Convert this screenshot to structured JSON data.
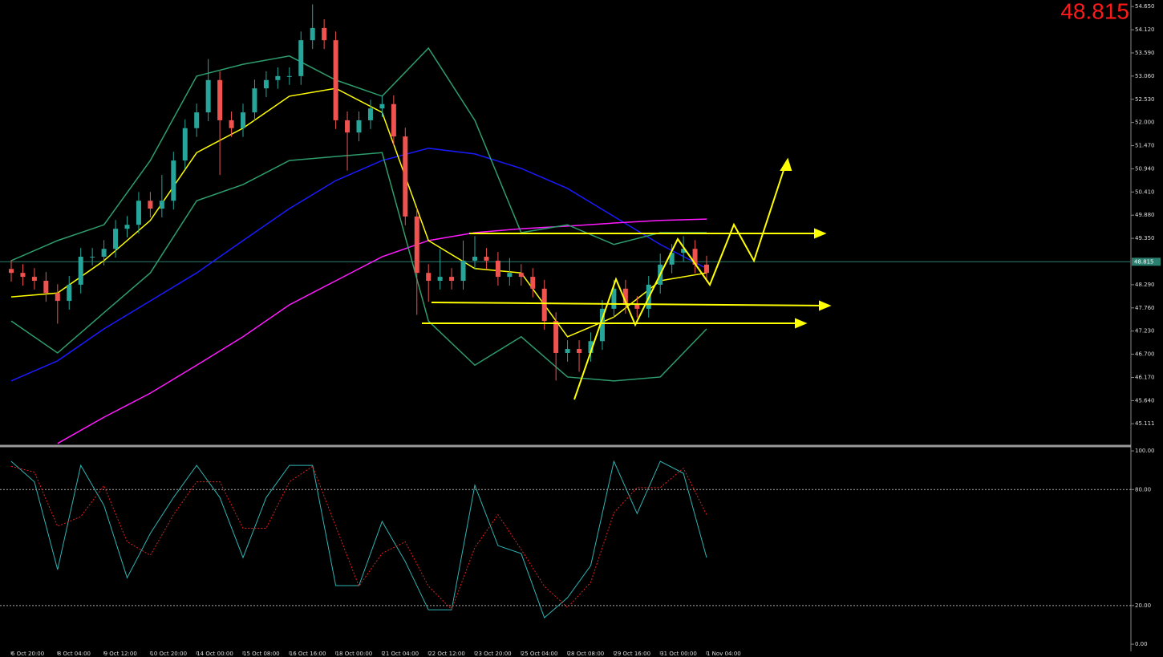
{
  "chart_data": [
    {
      "type": "candlestick",
      "current_price": 48.815,
      "up_color": "#26a69a",
      "down_color": "#ef5350",
      "categories": [
        "6 Oct 20:00",
        null,
        null,
        null,
        "8 Oct 04:00",
        null,
        null,
        null,
        "9 Oct 12:00",
        null,
        null,
        null,
        "10 Oct 20:00",
        null,
        null,
        null,
        "14 Oct 00:00",
        null,
        null,
        null,
        "15 Oct 08:00",
        null,
        null,
        null,
        "16 Oct 16:00",
        null,
        null,
        null,
        "18 Oct 00:00",
        null,
        null,
        null,
        "21 Oct 04:00",
        null,
        null,
        null,
        "22 Oct 12:00",
        null,
        null,
        null,
        "23 Oct 20:00",
        null,
        null,
        null,
        "25 Oct 04:00",
        null,
        null,
        null,
        "28 Oct 08:00",
        null,
        null,
        null,
        "29 Oct 16:00",
        null,
        null,
        null,
        "31 Oct 00:00",
        null,
        null,
        null,
        "1 Nov 04:00"
      ],
      "open": [
        48.65,
        48.56,
        48.47,
        48.38,
        48.1,
        47.92,
        48.29,
        48.93,
        48.93,
        49.11,
        49.57,
        49.66,
        50.21,
        50.03,
        50.21,
        51.13,
        51.87,
        52.23,
        52.97,
        52.05,
        51.87,
        52.23,
        52.78,
        52.97,
        53.06,
        53.06,
        53.88,
        54.16,
        53.88,
        52.05,
        51.77,
        52.05,
        52.32,
        52.42,
        51.68,
        49.85,
        48.56,
        48.38,
        48.47,
        48.38,
        48.84,
        48.93,
        48.84,
        48.47,
        48.56,
        48.47,
        48.2,
        47.46,
        46.73,
        46.82,
        46.73,
        47.0,
        47.74,
        48.2,
        47.83,
        47.74,
        48.29,
        48.75,
        49.02,
        49.11,
        48.75
      ],
      "high": [
        48.85,
        48.76,
        48.67,
        48.58,
        48.3,
        48.49,
        49.13,
        49.13,
        49.31,
        49.77,
        49.86,
        50.41,
        50.41,
        50.8,
        51.33,
        52.07,
        52.43,
        53.45,
        53.17,
        52.25,
        52.43,
        52.98,
        53.17,
        53.26,
        53.26,
        54.08,
        54.7,
        54.36,
        54.08,
        52.25,
        52.25,
        52.52,
        52.62,
        52.62,
        51.88,
        50.05,
        48.76,
        49.1,
        48.67,
        49.3,
        49.4,
        49.13,
        49.04,
        48.9,
        48.76,
        48.67,
        48.4,
        47.66,
        47.02,
        47.02,
        47.2,
        47.94,
        48.4,
        48.4,
        48.03,
        48.49,
        49.0,
        49.22,
        49.4,
        49.31,
        48.95
      ],
      "low": [
        48.36,
        48.27,
        48.18,
        47.9,
        47.4,
        47.72,
        48.09,
        48.73,
        48.73,
        48.91,
        49.37,
        49.46,
        49.83,
        49.83,
        50.01,
        50.93,
        51.67,
        52.03,
        50.8,
        51.67,
        51.67,
        52.03,
        52.58,
        52.77,
        52.86,
        52.86,
        53.68,
        53.68,
        51.85,
        50.9,
        51.57,
        51.85,
        52.12,
        51.48,
        49.65,
        47.6,
        47.9,
        48.18,
        48.18,
        48.18,
        48.64,
        48.64,
        48.27,
        48.27,
        48.27,
        48.0,
        47.26,
        46.1,
        46.53,
        46.3,
        46.53,
        46.8,
        47.54,
        47.63,
        47.54,
        47.54,
        48.09,
        48.55,
        48.82,
        48.55,
        48.36
      ],
      "close": [
        48.56,
        48.47,
        48.38,
        48.1,
        47.92,
        48.29,
        48.93,
        48.93,
        49.11,
        49.57,
        49.66,
        50.21,
        50.03,
        50.21,
        51.13,
        51.87,
        52.23,
        52.97,
        52.05,
        51.87,
        52.23,
        52.78,
        52.97,
        53.06,
        53.06,
        53.88,
        54.16,
        53.88,
        52.05,
        51.77,
        52.05,
        52.32,
        52.42,
        51.68,
        49.85,
        48.56,
        48.38,
        48.47,
        48.38,
        48.84,
        48.93,
        48.84,
        48.47,
        48.56,
        48.47,
        48.2,
        47.46,
        46.73,
        46.82,
        46.73,
        47.0,
        47.74,
        48.2,
        47.83,
        47.74,
        48.29,
        48.75,
        49.02,
        49.11,
        48.75,
        48.56
      ],
      "overlays": [
        {
          "color": "#1a1aff",
          "x": [
            0,
            4,
            8,
            12,
            16,
            20,
            24,
            28,
            32,
            36,
            40,
            44,
            48,
            52,
            56,
            60
          ],
          "values": [
            46.09,
            46.55,
            47.28,
            47.92,
            48.56,
            49.3,
            50.03,
            50.67,
            51.13,
            51.41,
            51.28,
            50.95,
            50.49,
            49.85,
            49.21,
            48.66
          ]
        },
        {
          "color": "#ff1aff",
          "x": [
            0,
            4,
            8,
            12,
            16,
            20,
            24,
            28,
            32,
            36,
            40,
            44,
            48,
            52,
            56,
            60
          ],
          "values": [
            null,
            44.66,
            45.26,
            45.81,
            46.45,
            47.1,
            47.83,
            48.38,
            48.93,
            49.3,
            49.48,
            49.57,
            49.63,
            49.7,
            49.76,
            49.79
          ]
        },
        {
          "color": "#ffff00",
          "x": [
            0,
            4,
            8,
            12,
            16,
            20,
            24,
            28,
            32,
            36,
            40,
            44,
            48,
            52,
            56,
            60
          ],
          "values": [
            48.01,
            48.1,
            48.84,
            49.76,
            51.31,
            51.87,
            52.6,
            52.78,
            52.23,
            49.3,
            48.66,
            48.56,
            47.1,
            47.55,
            48.38,
            48.56
          ]
        },
        {
          "color": "#2e9e6e",
          "x": [
            0,
            4,
            8,
            12,
            16,
            20,
            24,
            28,
            32,
            36,
            40,
            44,
            48,
            52,
            56,
            60
          ],
          "values": [
            48.84,
            49.3,
            49.66,
            51.13,
            53.06,
            53.33,
            53.52,
            52.97,
            52.6,
            53.7,
            52.05,
            49.48,
            49.66,
            49.21,
            49.48,
            49.48
          ]
        },
        {
          "color": "#2e9e6e",
          "x": [
            0,
            4,
            8,
            12,
            16,
            20,
            24,
            28,
            32,
            36,
            40,
            44,
            48,
            52,
            56,
            60
          ],
          "values": [
            47.46,
            46.73,
            47.65,
            48.56,
            50.21,
            50.58,
            51.13,
            51.22,
            51.31,
            47.46,
            46.45,
            47.1,
            46.18,
            46.09,
            46.18,
            47.28
          ]
        }
      ],
      "ylim": [
        44.62,
        54.8
      ],
      "yticks": [
        {
          "value": 54.65,
          "label": "54.650"
        },
        {
          "value": 54.12,
          "label": "54.120"
        },
        {
          "value": 53.59,
          "label": "53.590"
        },
        {
          "value": 53.06,
          "label": "53.060"
        },
        {
          "value": 52.53,
          "label": "52.530"
        },
        {
          "value": 52.0,
          "label": "52.000"
        },
        {
          "value": 51.47,
          "label": "51.470"
        },
        {
          "value": 50.94,
          "label": "50.940"
        },
        {
          "value": 50.41,
          "label": "50.410"
        },
        {
          "value": 49.88,
          "label": "49.880"
        },
        {
          "value": 49.35,
          "label": "49.350"
        },
        {
          "value": 48.29,
          "label": "48.290"
        },
        {
          "value": 47.76,
          "label": "47.760"
        },
        {
          "value": 47.23,
          "label": "47.230"
        },
        {
          "value": 46.7,
          "label": "46.700"
        },
        {
          "value": 46.17,
          "label": "46.170"
        },
        {
          "value": 45.64,
          "label": "45.640"
        },
        45.111
      ]
    },
    {
      "type": "line",
      "x": [
        0,
        2,
        4,
        6,
        8,
        10,
        12,
        14,
        16,
        18,
        20,
        22,
        24,
        26,
        28,
        30,
        32,
        34,
        36,
        38,
        40,
        42,
        44,
        46,
        48,
        50,
        52,
        54,
        56,
        58,
        60
      ],
      "series": [
        {
          "color": "#2fb5b5",
          "dash": false,
          "values": [
            94.6,
            84,
            38.6,
            92.5,
            71.8,
            34.4,
            57.3,
            75.9,
            92.5,
            75.9,
            44.8,
            75.9,
            92.5,
            92.5,
            30.3,
            30.3,
            63.5,
            42.7,
            17.8,
            17.8,
            82.2,
            51,
            46.9,
            13.7,
            24.1,
            40.7,
            94.6,
            67.6,
            94.6,
            88.4,
            44.8
          ]
        },
        {
          "color": "#e02020",
          "dash": true,
          "values": [
            92,
            89,
            61,
            66,
            82,
            53,
            46,
            67,
            84,
            84,
            60,
            60,
            84,
            92,
            61,
            30,
            47,
            53,
            30,
            18,
            50,
            67,
            49,
            30,
            19,
            32,
            68,
            81,
            81,
            91,
            67
          ]
        }
      ],
      "ylim": [
        -3.7,
        102.1
      ],
      "yticks": [
        {
          "value": 100,
          "label": "100.00"
        },
        {
          "value": 80,
          "label": "80.00"
        },
        {
          "value": 20,
          "label": "20.00"
        },
        {
          "value": 0,
          "label": "0.00"
        }
      ]
    }
  ]
}
